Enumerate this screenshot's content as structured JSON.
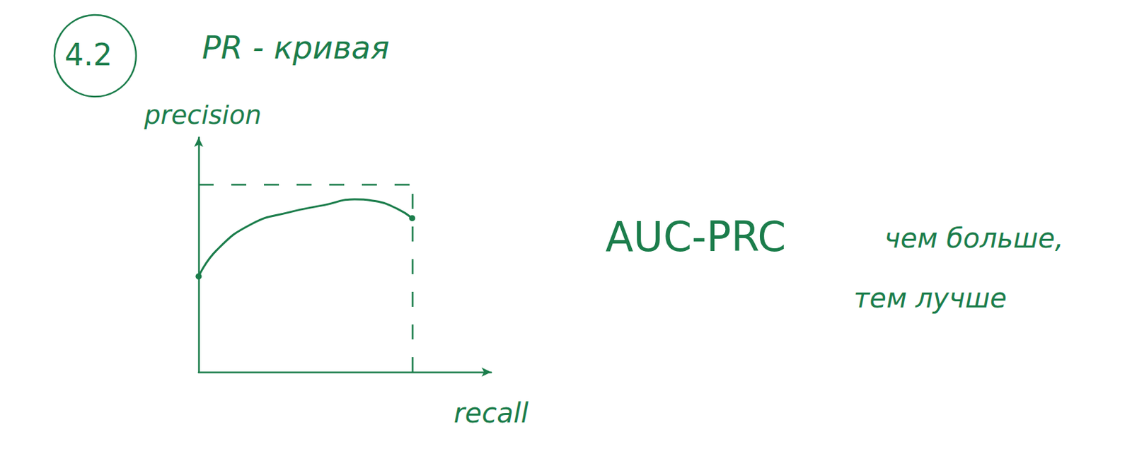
{
  "chart_data": {
    "type": "line",
    "title": "PR - кривая",
    "x_label": "recall",
    "y_label": "precision",
    "x": [
      0,
      0.085,
      0.25,
      0.42,
      0.59,
      0.73,
      0.83,
      0.93,
      1.0
    ],
    "values": [
      0.51,
      0.65,
      0.79,
      0.85,
      0.89,
      0.92,
      0.91,
      0.87,
      0.82
    ],
    "xlim": [
      0,
      1.37
    ],
    "ylim": [
      0,
      1.25
    ],
    "tick_labels": false,
    "grid": false,
    "color": "#1b7d4b",
    "line_style": "solid",
    "marker": "circle",
    "ideal": {
      "recall": 1,
      "precision": 1
    },
    "annotations": [
      "4.2",
      "AUC-PRC",
      "чем больше,",
      "тем лучше"
    ]
  }
}
